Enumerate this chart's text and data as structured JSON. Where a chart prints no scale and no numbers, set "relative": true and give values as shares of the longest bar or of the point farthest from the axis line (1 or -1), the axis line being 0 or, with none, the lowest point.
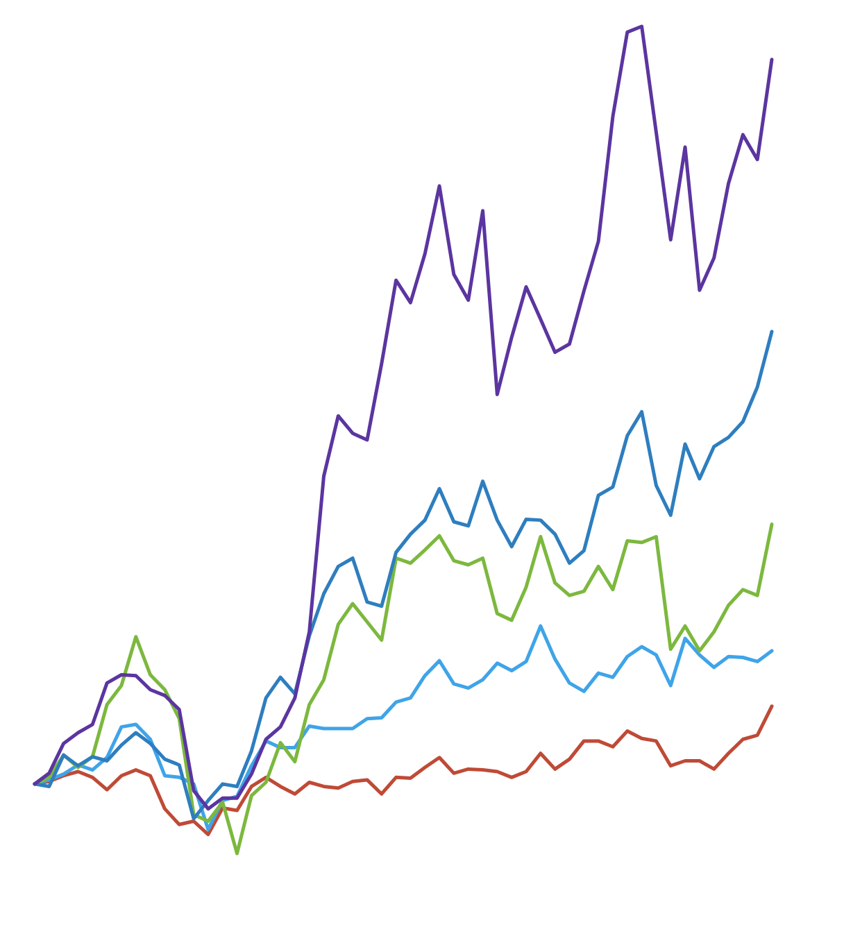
{
  "chart_data": {
    "type": "line",
    "relative": true,
    "marker": "none",
    "line_style": "solid",
    "categories": [
      null,
      null,
      null,
      null,
      null,
      null,
      null,
      null,
      null,
      null,
      null,
      null,
      null,
      null,
      null,
      null,
      null,
      null,
      null,
      null,
      null,
      null,
      null,
      null,
      null,
      null,
      null,
      null,
      null,
      null,
      null,
      null,
      null,
      null,
      null,
      null,
      null,
      null,
      null,
      null,
      null,
      null,
      null,
      null,
      null,
      null,
      null,
      null,
      null,
      null,
      null,
      null
    ],
    "series": [
      {
        "color": "#bf4a36",
        "values": [
          0.084,
          0.087,
          0.094,
          0.099,
          0.092,
          0.077,
          0.094,
          0.101,
          0.094,
          0.054,
          0.035,
          0.039,
          0.023,
          0.055,
          0.052,
          0.081,
          0.092,
          0.081,
          0.072,
          0.086,
          0.081,
          0.079,
          0.087,
          0.089,
          0.072,
          0.092,
          0.091,
          0.104,
          0.116,
          0.097,
          0.102,
          0.101,
          0.099,
          0.092,
          0.099,
          0.121,
          0.102,
          0.114,
          0.136,
          0.136,
          0.129,
          0.148,
          0.139,
          0.136,
          0.106,
          0.112,
          0.112,
          0.102,
          0.121,
          0.138,
          0.143,
          0.178
        ]
      },
      {
        "color": "#3fa4e8",
        "values": [
          0.084,
          0.089,
          0.096,
          0.107,
          0.101,
          0.116,
          0.153,
          0.156,
          0.138,
          0.094,
          0.092,
          0.084,
          0.029,
          0.064,
          0.069,
          0.106,
          0.136,
          0.128,
          0.128,
          0.154,
          0.151,
          0.151,
          0.151,
          0.163,
          0.164,
          0.183,
          0.188,
          0.215,
          0.233,
          0.205,
          0.2,
          0.21,
          0.23,
          0.221,
          0.232,
          0.275,
          0.235,
          0.206,
          0.196,
          0.218,
          0.213,
          0.238,
          0.25,
          0.24,
          0.203,
          0.26,
          0.24,
          0.225,
          0.238,
          0.237,
          0.232,
          0.245
        ]
      },
      {
        "color": "#7cb83e",
        "values": [
          0.084,
          0.092,
          0.119,
          0.104,
          0.117,
          0.18,
          0.203,
          0.262,
          0.216,
          0.198,
          0.163,
          0.047,
          0.039,
          0.062,
          0,
          0.07,
          0.086,
          0.134,
          0.111,
          0.18,
          0.21,
          0.277,
          0.302,
          0.28,
          0.258,
          0.357,
          0.351,
          0.367,
          0.384,
          0.354,
          0.349,
          0.357,
          0.29,
          0.282,
          0.322,
          0.383,
          0.327,
          0.312,
          0.317,
          0.347,
          0.319,
          0.378,
          0.376,
          0.383,
          0.247,
          0.275,
          0.245,
          0.268,
          0.3,
          0.319,
          0.312,
          0.398
        ]
      },
      {
        "color": "#2e7ebf",
        "values": [
          0.084,
          0.081,
          0.119,
          0.106,
          0.117,
          0.112,
          0.131,
          0.146,
          0.133,
          0.114,
          0.107,
          0.042,
          0.064,
          0.084,
          0.081,
          0.124,
          0.188,
          0.213,
          0.193,
          0.263,
          0.314,
          0.347,
          0.357,
          0.304,
          0.299,
          0.364,
          0.386,
          0.403,
          0.441,
          0.401,
          0.396,
          0.45,
          0.403,
          0.371,
          0.404,
          0.403,
          0.386,
          0.351,
          0.366,
          0.433,
          0.443,
          0.505,
          0.534,
          0.445,
          0.409,
          0.495,
          0.453,
          0.492,
          0.503,
          0.522,
          0.564,
          0.631
        ]
      },
      {
        "color": "#5b35a0",
        "values": [
          0.084,
          0.097,
          0.133,
          0.146,
          0.156,
          0.206,
          0.216,
          0.215,
          0.198,
          0.191,
          0.174,
          0.076,
          0.054,
          0.067,
          0.067,
          0.096,
          0.138,
          0.153,
          0.188,
          0.268,
          0.456,
          0.529,
          0.508,
          0.5,
          0.592,
          0.693,
          0.666,
          0.725,
          0.807,
          0.7,
          0.669,
          0.777,
          0.555,
          0.624,
          0.685,
          0.646,
          0.606,
          0.616,
          0.68,
          0.74,
          0.891,
          0.993,
          1,
          0.872,
          0.742,
          0.854,
          0.681,
          0.72,
          0.81,
          0.869,
          0.839,
          0.96
        ]
      }
    ]
  }
}
